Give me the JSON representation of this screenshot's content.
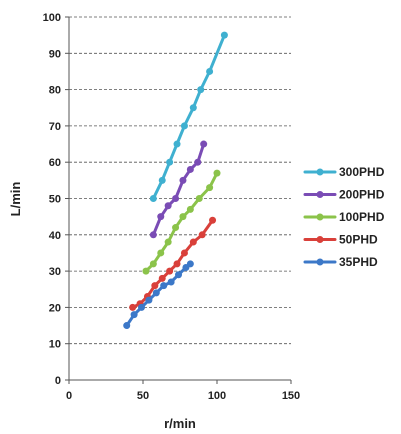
{
  "chart_data": {
    "type": "line",
    "xlabel": "r/min",
    "ylabel": "L/min",
    "xlim": [
      0,
      150
    ],
    "ylim": [
      0,
      100
    ],
    "x_ticks": [
      0,
      50,
      100,
      150
    ],
    "y_ticks": [
      0,
      10,
      20,
      30,
      40,
      50,
      60,
      70,
      80,
      90,
      100
    ],
    "grid": "horizontal dashed",
    "legend_position": "right",
    "series": [
      {
        "name": "300PHD",
        "color": "#3fb0d0",
        "x": [
          57,
          63,
          68,
          73,
          78,
          84,
          89,
          95,
          105
        ],
        "y": [
          50,
          55,
          60,
          65,
          70,
          75,
          80,
          85,
          95
        ]
      },
      {
        "name": "200PHD",
        "color": "#7a4cb5",
        "x": [
          57,
          62,
          67,
          72,
          77,
          82,
          87,
          91
        ],
        "y": [
          40,
          45,
          48,
          50,
          55,
          58,
          60,
          65
        ]
      },
      {
        "name": "100PHD",
        "color": "#8bc34a",
        "x": [
          52,
          57,
          62,
          67,
          72,
          77,
          82,
          88,
          95,
          100
        ],
        "y": [
          30,
          32,
          35,
          38,
          42,
          45,
          47,
          50,
          53,
          57
        ]
      },
      {
        "name": "50PHD",
        "color": "#d9403a",
        "x": [
          43,
          48,
          53,
          58,
          63,
          68,
          73,
          78,
          84,
          90,
          97
        ],
        "y": [
          20,
          21,
          23,
          26,
          28,
          30,
          32,
          35,
          38,
          40,
          44
        ]
      },
      {
        "name": "35PHD",
        "color": "#3c78c8",
        "x": [
          39,
          44,
          49,
          54,
          59,
          64,
          69,
          74,
          79,
          82
        ],
        "y": [
          15,
          18,
          20,
          22,
          24,
          26,
          27,
          29,
          31,
          32
        ]
      }
    ]
  }
}
